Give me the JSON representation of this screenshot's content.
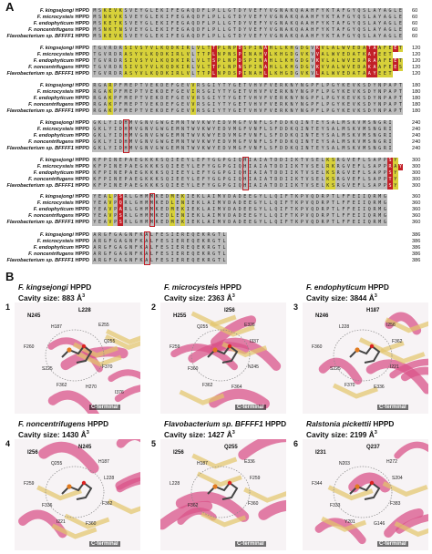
{
  "panel_a": {
    "letter": "A",
    "blocks": [
      {
        "ruler": "",
        "rows": [
          {
            "name": "F. kingsejongi",
            "suffix": " HPPD",
            "seq": "MSKEVKSVEYGLEKIFEGAQDFLPLLGTDYVEFYVGNAKQAAHFYKTAFGYQSLAYAGLE",
            "num": "60"
          },
          {
            "name": "F. microcysteis",
            "suffix": " HPPD",
            "seq": "MSNKVKSVEYGLEKIFEGAQDFLPLLGTDYVEFYVGNAKQAAHFYKTAFGYQSLAYAGLE",
            "num": "60"
          },
          {
            "name": "F. endophyticum",
            "suffix": " HPPD",
            "seq": "MSKETKSVEYGLEKIFEGAQDFLPLLGTDYVEFYVGNAKQAAHFYKTAFGYQSLAYAGLE",
            "num": "60"
          },
          {
            "name": "F. noncentrifugens",
            "suffix": " HPPD",
            "seq": "MSNKTNSVEYGLEKIFEGAQDFLPLLGTDYVEFYVGNAKQAAHFYKTAFGYQSLAYAGLE",
            "num": "60"
          },
          {
            "name": "Flavobacterium sp. BFFFF1",
            "suffix": " HPPD",
            "seq": "MSKEVKSVEYGLEKIFEGAQDFLPLLGTDYVEFYVGNAKQAAHFYKTAFGYQSLAYAGLE",
            "num": "60"
          }
        ]
      },
      {
        "rows": [
          {
            "name": "F. kingsejongi",
            "suffix": " HPPD",
            "seq": "TGVRDRSIVSYVLKQDKIRLVLTTPLNPDSPINAHLLKHGDGVKVLALWVEDATAAFEET",
            "num": "120"
          },
          {
            "name": "F. microcysteis",
            "suffix": " HPPD",
            "seq": "TGVRDRASYVLKQDKIRLVLTTPLNPNSPINAHVLKHGDGVKVVALWVEDATKAFEET",
            "num": "120"
          },
          {
            "name": "F. endophyticum",
            "suffix": " HPPD",
            "seq": "TGVRDRSIVSYVLKQDKIRLVLTSPLNPDSPINAHLLKHGDGVKVLALWVEDARAAFEET",
            "num": "120"
          },
          {
            "name": "F. noncentrifugens",
            "suffix": " HPPD",
            "seq": "TGVRDRSIVSYVLKQDKIRLVLTTPLNPNSPINAHLLKHGDGVKVVALWVEDAKAAFEES",
            "num": "120"
          },
          {
            "name": "Flavobacterium sp. BFFFF1",
            "suffix": " HPPD",
            "seq": "TGVRDRASYVLKQDKIRLVLTTPLNPDSPINAHLLKHGDGVKVLALWVEDATAAYEET",
            "num": "120"
          }
        ]
      },
      {
        "rows": [
          {
            "name": "F. kingsejongi",
            "suffix": " HPPD",
            "seq": "RGARPFMEPTVEKDEFGEVVRSGIYTYGETVHVFVERKNYNGPFLPGYKEVKSDYNPAPT",
            "num": "180"
          },
          {
            "name": "F. microcysteis",
            "suffix": " HPPD",
            "seq": "RGAKPFMEPTVEKDEFGEVIRSGIYTYGETVHVFVERKNYNGPFLPGYKEVKSDYNPAPT",
            "num": "180"
          },
          {
            "name": "F. endophyticum",
            "suffix": " HPPD",
            "seq": "RGAKPFMEPTVEKDEFGEVVRSGIYTYGETVHVFVERKNYNGPFLPGYKEVKSDYNPAPT",
            "num": "180"
          },
          {
            "name": "F. noncentrifugens",
            "suffix": " HPPD",
            "seq": "RGAKPFMEPTVEKDEFGEVVRSGIYTYGETVHVFVERKNYNGPFLPGYKEVKSDYNPAPT",
            "num": "180"
          },
          {
            "name": "Flavobacterium sp. BFFFF1",
            "suffix": " HPPD",
            "seq": "RGAKPFMEPTVEKDEFGEVVRSGIYTYGETVHVFVERKNYNGPFLPGYKEVKSDYNPAPT",
            "num": "180"
          }
        ]
      },
      {
        "rows": [
          {
            "name": "F. kingsejongi",
            "suffix": " HPPD",
            "seq": "GKLYIDHMVGNVGWGEMNTWVKWYEDVMGFVNFLSFDDKQINTEYSALMSKVMSNGRI",
            "num": "240"
          },
          {
            "name": "F. microcysteis",
            "suffix": " HPPD",
            "seq": "GKLYIDHMVGNVGWGEMNTWVKWYEDVMGFVNFLSFDDKQINTEYSALMSKVMSNGRI",
            "num": "240"
          },
          {
            "name": "F. endophyticum",
            "suffix": " HPPD",
            "seq": "GKLYIDHMVGNVGWGEMNTWVKWYEDVMGFVNFLSFDDKQINTEYSALMSKVMSNGRI",
            "num": "240"
          },
          {
            "name": "F. noncentrifugens",
            "suffix": " HPPD",
            "seq": "GKLYIDHMVGNVGWGEMNTWVKWYEDVMGFVNFLSFDDKQINTEYSALMSKVMSNGRI",
            "num": "240"
          },
          {
            "name": "Flavobacterium sp. BFFFF1",
            "suffix": " HPPD",
            "seq": "GKLYIDHMVGNVGWGEMNTWVKWYEDVMGFVNFLSFDDKQINTEYSALMSKVMSNGRI",
            "num": "240"
          }
        ]
      },
      {
        "rows": [
          {
            "name": "F. kingsejongi",
            "suffix": " HPPD",
            "seq": "KFPINEPAEGKKKSQIEEYLEFYGGPGIQHIAIATDDIIKTVSELKSRGVEFLSAPPSY",
            "num": "300"
          },
          {
            "name": "F. microcysteis",
            "suffix": " HPPD",
            "seq": "KFPINEPAEGKKKSQIEEYLEFYGGPGIQHIAIATDDIIKTVSELRKRGVEFLSAPPRAY",
            "num": "300"
          },
          {
            "name": "F. endophyticum",
            "suffix": " HPPD",
            "seq": "KFPINEPAEGKKKSQIEEYLEFYGGPGIQHIAIATDDIIKTVSELKSRGVEFLSAPPSY",
            "num": "300"
          },
          {
            "name": "F. noncentrifugens",
            "suffix": " HPPD",
            "seq": "KFPINEPAEGKKKSQIEEYLEFYGGPGIQHIAIATDDIIKTVSELKSRGVEFLSAPPTY",
            "num": "300"
          },
          {
            "name": "Flavobacterium sp. BFFFF1",
            "suffix": " HPPD",
            "seq": "KFPINEPAEGKKKSQIEEYLEFYGGPGIQHIAIATDDIIKTVSELKSRGVEFLSAPPSY",
            "num": "300"
          }
        ]
      },
      {
        "rows": [
          {
            "name": "F. kingsejongi",
            "suffix": " HPPD",
            "seq": "YEALPSRLGHMMKEDMEKIEKLAIMVDADEEGYLLQIFTKPVQDRPTLFFEIIQRMG",
            "num": "360"
          },
          {
            "name": "F. microcysteis",
            "suffix": " HPPD",
            "seq": "YEAVPQRLGHMMKEDLENIEKLAIMVDADEEGYLLQIFTKPVQDRPTLFFEIIQRMG",
            "num": "360"
          },
          {
            "name": "F. endophyticum",
            "suffix": " HPPD",
            "seq": "YEAVPARLGHMMKEDMEKIEKLAIMVDADEEGYLLQIFTKPVQDRPTLFFEIIQRMG",
            "num": "360"
          },
          {
            "name": "F. noncentrifugens",
            "suffix": " HPPD",
            "seq": "YEAVPSRLGHMMKEDLENIEKLAIMVDADEEGYLLQIFTKPVQDRPTLFFEIIQRMG",
            "num": "360"
          },
          {
            "name": "Flavobacterium sp. BFFFF1",
            "suffix": " HPPD",
            "seq": "YEAVPSRLGHMMKEDMEKIEKLAIMVDADEEGYLLQIFTKPVQDRPTLFFEIIQRMG",
            "num": "360"
          }
        ]
      },
      {
        "rows": [
          {
            "name": "F. kingsejongi",
            "suffix": " HPPD",
            "seq": "ARGFGAGNFKALFESIEREQEKRGTL",
            "num": "386"
          },
          {
            "name": "F. microcysteis",
            "suffix": " HPPD",
            "seq": "ARGFGAGNFKALFESIEREQEKRGTL",
            "num": "386"
          },
          {
            "name": "F. endophyticum",
            "suffix": " HPPD",
            "seq": "ARGFGAGNFKALFESIEREQEKRGTL",
            "num": "386"
          },
          {
            "name": "F. noncentrifugens",
            "suffix": " HPPD",
            "seq": "ARGFGAGNFKALFESIEREQEKRGTL",
            "num": "386"
          },
          {
            "name": "Flavobacterium sp. BFFFF1",
            "suffix": " HPPD",
            "seq": "ARGFGAGNFKALFESIEREQEKRGTL",
            "num": "386"
          }
        ]
      }
    ]
  },
  "panel_b": {
    "letter": "B",
    "structures": [
      {
        "index": "1",
        "species": "F. kingsejongi",
        "suffix": " HPPD",
        "cavity_label": "Cavity size: 883 Å",
        "sup": "3",
        "cterm": "C-terminal",
        "residues": [
          "N245",
          "L228",
          "H187",
          "E255",
          "Q255",
          "F260",
          "S225",
          "F370",
          "F362",
          "H270",
          "I376"
        ]
      },
      {
        "index": "2",
        "species": "F. microcysteis",
        "suffix": " HPPD",
        "cavity_label": "Cavity size: 2363 Å",
        "sup": "3",
        "cterm": "C-terminal",
        "residues": [
          "H255",
          "I256",
          "Q255",
          "E326",
          "I337",
          "F259",
          "F360",
          "N245",
          "F362",
          "F364"
        ]
      },
      {
        "index": "3",
        "species": "F. endophyticum",
        "suffix": " HPPD",
        "cavity_label": "Cavity size: 3844 Å",
        "sup": "3",
        "cterm": "C-terminal",
        "residues": [
          "N246",
          "H187",
          "L228",
          "I256",
          "F362",
          "F360",
          "S225",
          "I221",
          "F370",
          "E336"
        ]
      },
      {
        "index": "4",
        "species": "F. noncentrifugens",
        "suffix": " HPPD",
        "cavity_label": "Cavity size: 1430 Å",
        "sup": "3",
        "cterm": "C-terminal",
        "residues": [
          "I256",
          "N245",
          "Q255",
          "H187",
          "L228",
          "F259",
          "F336",
          "F362",
          "I221",
          "F360"
        ]
      },
      {
        "index": "5",
        "species": "Flavobacterium sp. BFFFF1",
        "suffix": " HPPD",
        "cavity_label": "Cavity size: 1427 Å",
        "sup": "3",
        "cterm": "C-terminal",
        "residues": [
          "I256",
          "Q255",
          "H187",
          "E336",
          "F259",
          "L228",
          "F362",
          "F360"
        ]
      },
      {
        "index": "6",
        "species": "Ralstonia pickettii",
        "suffix": " HPPD",
        "cavity_label": "Cavity size: 2199 Å",
        "sup": "3",
        "cterm": "C-terminal",
        "residues": [
          "I231",
          "Q237",
          "N203",
          "H272",
          "S204",
          "F344",
          "F333",
          "F383",
          "Y201",
          "G146"
        ]
      }
    ]
  },
  "colors": {
    "conserved": "#bdbdbd",
    "variable": "#c22028",
    "similar": "#d7d13a",
    "helix": "#d9548a",
    "sheet": "#e2c46a",
    "water_bg": "#ffffff"
  }
}
